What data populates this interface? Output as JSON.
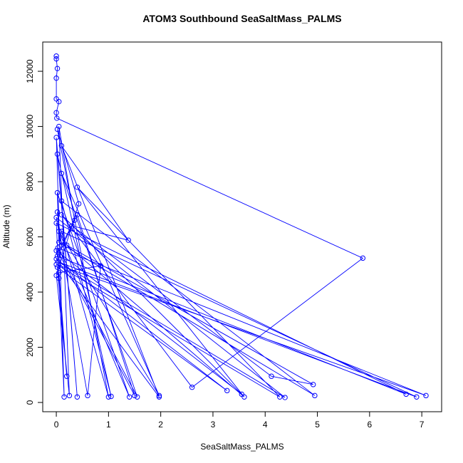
{
  "chart_data": {
    "type": "line",
    "markers": true,
    "title": "ATOM3 Southbound SeaSaltMass_PALMS",
    "x_label": "SeaSaltMass_PALMS",
    "y_label": "Altitude (m)",
    "color": "#0000ff",
    "x": [
      0,
      0,
      0.02,
      0,
      0,
      0.05,
      0,
      0.01,
      5.87,
      2.6,
      0.1,
      3.55,
      0,
      0.02,
      6.7,
      0,
      0.05,
      0.15,
      0,
      0.4,
      0.02,
      1.05,
      0.1,
      4.95,
      0.05,
      0.02,
      1.4,
      0.05,
      1.97,
      0.1,
      1.55,
      0.03,
      7.08,
      0,
      4.28,
      0.4,
      3.6,
      0.2,
      4.92,
      4.12,
      0.3,
      1.38,
      0.1,
      1.97,
      0,
      3.27,
      0.02,
      0.2,
      0.05,
      0.85,
      0.6,
      0,
      4.38,
      0.03,
      6.9,
      0.1,
      1.0,
      0.02,
      0.43,
      0,
      0.25,
      0.05,
      0.35,
      0.05,
      1.5,
      0.4,
      0.1,
      0.02
    ],
    "values": [
      12550,
      12450,
      12100,
      11750,
      11000,
      10900,
      10500,
      10300,
      5230,
      550,
      6800,
      300,
      5500,
      5300,
      300,
      6500,
      4500,
      200,
      9600,
      200,
      9000,
      220,
      7300,
      250,
      5800,
      7600,
      200,
      6200,
      250,
      8300,
      200,
      5600,
      250,
      5000,
      200,
      7800,
      200,
      5700,
      650,
      950,
      6400,
      5880,
      9300,
      200,
      5200,
      430,
      4900,
      950,
      4700,
      4950,
      250,
      6700,
      180,
      5100,
      200,
      6200,
      200,
      9900,
      7200,
      4600,
      250,
      10000,
      6600,
      5400,
      250,
      6800,
      5700,
      6900
    ],
    "xlim": [
      -0.26,
      7.38
    ],
    "ylim": [
      -335,
      13060
    ],
    "xticks": [
      0,
      1,
      2,
      3,
      4,
      5,
      6,
      7
    ],
    "yticks": [
      0,
      2000,
      4000,
      6000,
      8000,
      10000,
      12000
    ]
  }
}
